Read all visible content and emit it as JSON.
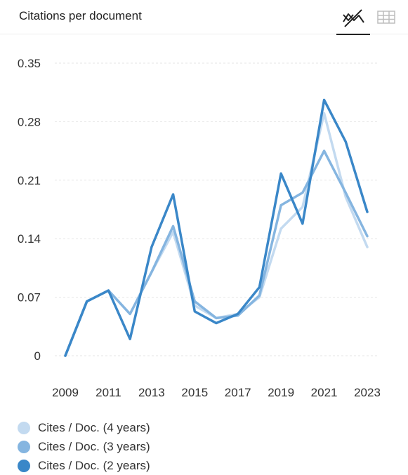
{
  "header": {
    "title": "Citations per document",
    "chart_view_icon": "line-chart-icon",
    "table_view_icon": "table-icon"
  },
  "chart_data": {
    "type": "line",
    "title": "Citations per document",
    "x": [
      2009,
      2010,
      2011,
      2012,
      2013,
      2014,
      2015,
      2016,
      2017,
      2018,
      2019,
      2020,
      2021,
      2022,
      2023
    ],
    "x_tick_labels": [
      "2009",
      "2011",
      "2013",
      "2015",
      "2017",
      "2019",
      "2021",
      "2023"
    ],
    "y_tick_labels": [
      "0",
      "0.07",
      "0.14",
      "0.21",
      "0.28",
      "0.35"
    ],
    "ylim": [
      0,
      0.35
    ],
    "grid": true,
    "legend_position": "bottom",
    "series": [
      {
        "name": "Cites / Doc. (4 years)",
        "color": "#c3daf0",
        "values": [
          0,
          0.065,
          0.078,
          0.05,
          0.1,
          0.148,
          0.06,
          0.045,
          0.05,
          0.07,
          0.152,
          0.178,
          0.29,
          0.19,
          0.13
        ]
      },
      {
        "name": "Cites / Doc. (3 years)",
        "color": "#85b5e0",
        "values": [
          0,
          0.065,
          0.078,
          0.05,
          0.1,
          0.155,
          0.065,
          0.045,
          0.048,
          0.072,
          0.18,
          0.195,
          0.245,
          0.195,
          0.143
        ]
      },
      {
        "name": "Cites / Doc. (2 years)",
        "color": "#3a87c8",
        "values": [
          0,
          0.065,
          0.078,
          0.02,
          0.13,
          0.193,
          0.053,
          0.039,
          0.05,
          0.082,
          0.218,
          0.158,
          0.306,
          0.256,
          0.172
        ]
      }
    ]
  }
}
